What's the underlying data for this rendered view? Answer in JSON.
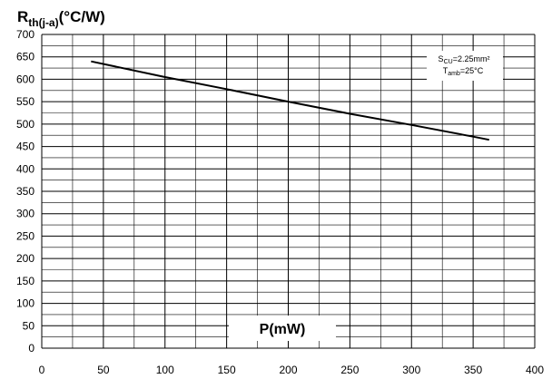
{
  "chart_data": {
    "type": "line",
    "title": "",
    "ylabel": {
      "main": "R",
      "sub": "th(j-a)",
      "unit": "(°C/W)"
    },
    "xlabel": "P(mW)",
    "xlim": [
      0,
      400
    ],
    "ylim": [
      0,
      700
    ],
    "x_ticks": [
      0,
      50,
      100,
      150,
      200,
      250,
      300,
      350,
      400
    ],
    "y_ticks": [
      0,
      50,
      100,
      150,
      200,
      250,
      300,
      350,
      400,
      450,
      500,
      550,
      600,
      650,
      700
    ],
    "grid": true,
    "series": [
      {
        "x": [
          40,
          100,
          150,
          200,
          250,
          300,
          350,
          363
        ],
        "y": [
          640,
          605,
          578,
          550,
          523,
          498,
          472,
          465
        ]
      }
    ],
    "annotations": [
      {
        "main": "S",
        "sub": "CU",
        "rest": "=2.25mm²"
      },
      {
        "main": "T",
        "sub": "amb",
        "rest": "=25°C"
      }
    ]
  }
}
